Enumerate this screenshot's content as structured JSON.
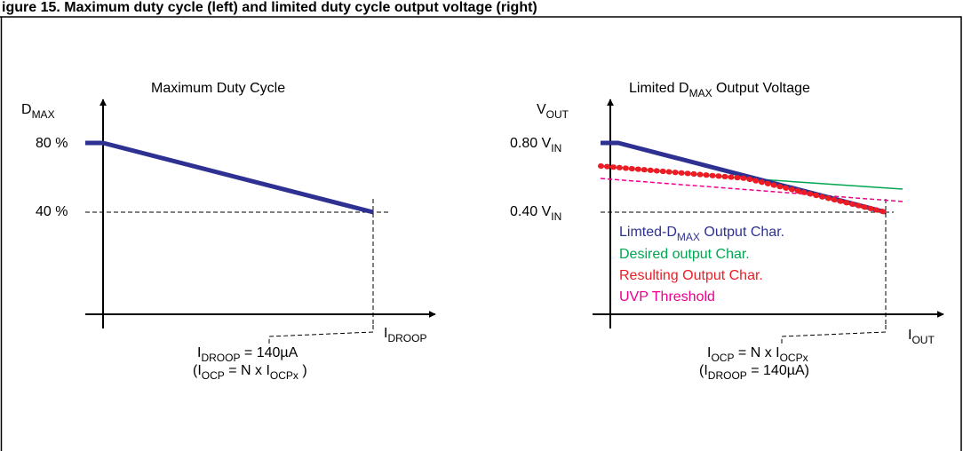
{
  "figure_title": "igure 15. Maximum duty cycle (left) and limited duty cycle output voltage (right)",
  "left": {
    "title": "Maximum Duty Cycle",
    "y_axis": {
      "main": "D",
      "sub": "MAX"
    },
    "y_ticks": [
      "80 %",
      "40 %"
    ],
    "x_axis": {
      "main": "I",
      "sub": "DROOP"
    },
    "note1": {
      "main": "I",
      "sub": "DROOP",
      "rest": " = 140µA"
    },
    "note2": {
      "open": "(I",
      "sub1": "OCP",
      "mid": " = N x I",
      "sub2": "OCPx",
      "close": " )"
    },
    "line": {
      "x": [
        0,
        1
      ],
      "y": [
        80,
        40
      ]
    }
  },
  "right": {
    "title": {
      "pre": "Limited D",
      "sub": "MAX",
      "post": " Output Voltage"
    },
    "y_axis": {
      "main": "V",
      "sub": "OUT"
    },
    "y_ticks": [
      {
        "pre": "0.80 V",
        "sub": "IN"
      },
      {
        "pre": "0.40 V",
        "sub": "IN"
      }
    ],
    "x_axis": {
      "main": "I",
      "sub": "OUT"
    },
    "note1": {
      "main": "I",
      "sub1": "OCP",
      "mid": " = N x I",
      "sub2": "OCPx"
    },
    "note2": {
      "open": "(I",
      "sub": "DROOP",
      "rest": " = 140µA)"
    },
    "legend": [
      {
        "pre": "Limted-D",
        "sub": "MAX",
        "post": " Output Char.",
        "color": "#2e3192"
      },
      {
        "pre": "Desired output Char.",
        "sub": "",
        "post": "",
        "color": "#00a651"
      },
      {
        "pre": "Resulting Output Char.",
        "sub": "",
        "post": "",
        "color": "#ed1c24"
      },
      {
        "pre": "UVP Threshold",
        "sub": "",
        "post": "",
        "color": "#ec008c"
      }
    ]
  },
  "colors": {
    "limited": "#2e3192",
    "desired": "#00a651",
    "resulting": "#ed1c24",
    "uvp": "#ec008c"
  }
}
